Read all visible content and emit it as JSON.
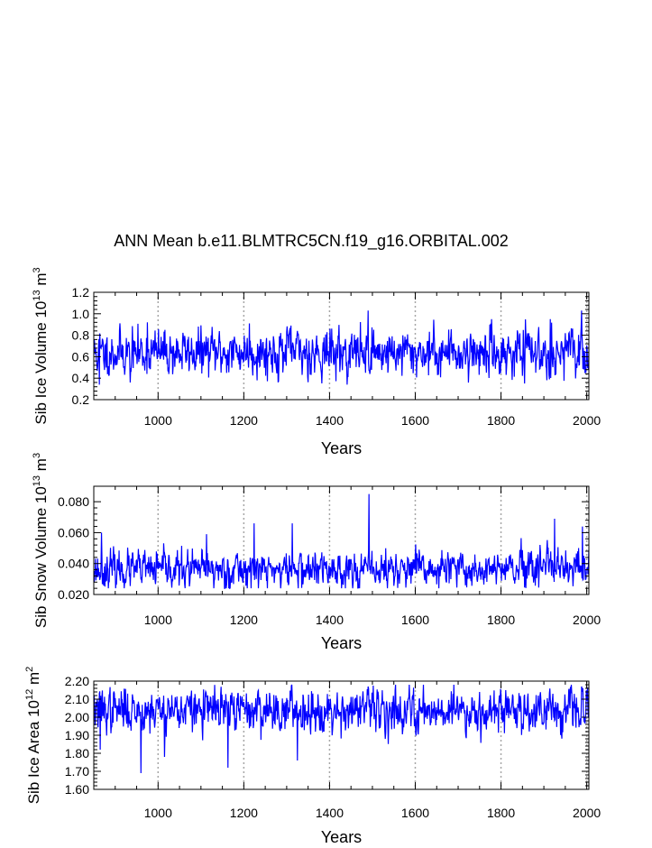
{
  "title": "ANN Mean b.e11.BLMTRC5CN.f19_g16.ORBITAL.002",
  "colors": {
    "series": "#0000ff",
    "grid": "#a6a6a6",
    "axis": "#000000"
  },
  "chart_data": [
    {
      "type": "line",
      "id": "ice-volume",
      "title": "ANN Mean b.e11.BLMTRC5CN.f19_g16.ORBITAL.002",
      "xlabel": "Years",
      "ylabel": {
        "prefix": "Sib Ice Volume 10",
        "exp": "13",
        "unit": " m",
        "unit_exp": "3"
      },
      "xlim": [
        850,
        2005
      ],
      "ylim": [
        0.2,
        1.2
      ],
      "xticks": [
        1000,
        1200,
        1400,
        1600,
        1800,
        2000
      ],
      "xtick_labels": [
        "1000",
        "1200",
        "1400",
        "1600",
        "1800",
        "2000"
      ],
      "yticks": [
        0.2,
        0.4,
        0.6,
        0.8,
        1.0,
        1.2
      ],
      "ytick_labels": [
        "0.2",
        "0.4",
        "0.6",
        "0.8",
        "1.0",
        "1.2"
      ],
      "grid_x": [
        1000,
        1200,
        1400,
        1600,
        1800,
        2000
      ],
      "series": [
        {
          "name": "Sib Ice Volume",
          "x_start": 850,
          "x_end": 2005,
          "seed": 11,
          "mean": 0.64,
          "sd": 0.1,
          "min": 0.34,
          "max": 1.03,
          "peaks": [
            [
              1490,
              1.03
            ],
            [
              1213,
              0.91
            ],
            [
              1915,
              0.95
            ],
            [
              975,
              0.92
            ],
            [
              1310,
              0.89
            ]
          ],
          "dips": [
            [
              863,
              0.34
            ],
            [
              1443,
              0.41
            ],
            [
              1855,
              0.35
            ],
            [
              935,
              0.36
            ]
          ]
        }
      ]
    },
    {
      "type": "line",
      "id": "snow-volume",
      "xlabel": "Years",
      "ylabel": {
        "prefix": "Sib Snow Volume 10",
        "exp": "13",
        "unit": " m",
        "unit_exp": "3"
      },
      "xlim": [
        850,
        2005
      ],
      "ylim": [
        0.02,
        0.09
      ],
      "xticks": [
        1000,
        1200,
        1400,
        1600,
        1800,
        2000
      ],
      "xtick_labels": [
        "1000",
        "1200",
        "1400",
        "1600",
        "1800",
        "2000"
      ],
      "yticks": [
        0.02,
        0.04,
        0.06,
        0.08
      ],
      "ytick_labels": [
        "0.020",
        "0.040",
        "0.060",
        "0.080"
      ],
      "grid_x": [
        1000,
        1200,
        1400,
        1600,
        1800,
        2000
      ],
      "series": [
        {
          "name": "Sib Snow Volume",
          "x_start": 850,
          "x_end": 2005,
          "seed": 23,
          "mean": 0.036,
          "sd": 0.0055,
          "min": 0.024,
          "max": 0.085,
          "peaks": [
            [
              1492,
              0.085
            ],
            [
              1925,
              0.069
            ],
            [
              1224,
              0.066
            ],
            [
              1313,
              0.066
            ],
            [
              1990,
              0.064
            ],
            [
              868,
              0.06
            ],
            [
              1113,
              0.059
            ]
          ],
          "dips": [
            [
              1165,
              0.024
            ],
            [
              1655,
              0.024
            ]
          ]
        }
      ]
    },
    {
      "type": "line",
      "id": "ice-area",
      "xlabel": "Years",
      "ylabel": {
        "prefix": "Sib Ice Area 10",
        "exp": "12",
        "unit": " m",
        "unit_exp": "2"
      },
      "xlim": [
        850,
        2005
      ],
      "ylim": [
        1.6,
        2.2
      ],
      "xticks": [
        1000,
        1200,
        1400,
        1600,
        1800,
        2000
      ],
      "xtick_labels": [
        "1000",
        "1200",
        "1400",
        "1600",
        "1800",
        "2000"
      ],
      "yticks": [
        1.6,
        1.7,
        1.8,
        1.9,
        2.0,
        2.1,
        2.2
      ],
      "ytick_labels": [
        "1.60",
        "1.70",
        "1.80",
        "1.90",
        "2.00",
        "2.10",
        "2.20"
      ],
      "grid_x": [
        1000,
        1200,
        1400,
        1600,
        1800,
        2000
      ],
      "series": [
        {
          "name": "Sib Ice Area",
          "x_start": 850,
          "x_end": 2005,
          "seed": 37,
          "mean": 2.04,
          "sd": 0.055,
          "min": 1.69,
          "max": 2.18,
          "peaks": [
            [
              1690,
              2.18
            ],
            [
              1490,
              2.17
            ]
          ],
          "dips": [
            [
              960,
              1.69
            ],
            [
              1163,
              1.72
            ],
            [
              1325,
              1.76
            ],
            [
              865,
              1.82
            ],
            [
              1015,
              1.78
            ]
          ]
        }
      ]
    }
  ]
}
